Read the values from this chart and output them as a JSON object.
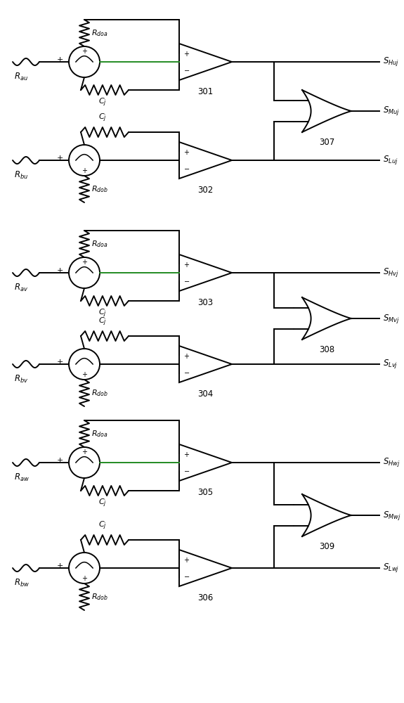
{
  "background": "#ffffff",
  "line_color": "#000000",
  "green_color": "#228B22",
  "groups": [
    {
      "top_num": "301",
      "bot_num": "302",
      "or_num": "307",
      "src_top": "au",
      "src_bot": "bu",
      "out_H": "Huj",
      "out_M": "Muj",
      "out_L": "Luj"
    },
    {
      "top_num": "303",
      "bot_num": "304",
      "or_num": "308",
      "src_top": "av",
      "src_bot": "bv",
      "out_H": "Hvj",
      "out_M": "Mvj",
      "out_L": "Lvj"
    },
    {
      "top_num": "305",
      "bot_num": "306",
      "or_num": "309",
      "src_top": "aw",
      "src_bot": "bw",
      "out_H": "Hwj",
      "out_M": "Mwj",
      "out_L": "Lwj"
    }
  ]
}
